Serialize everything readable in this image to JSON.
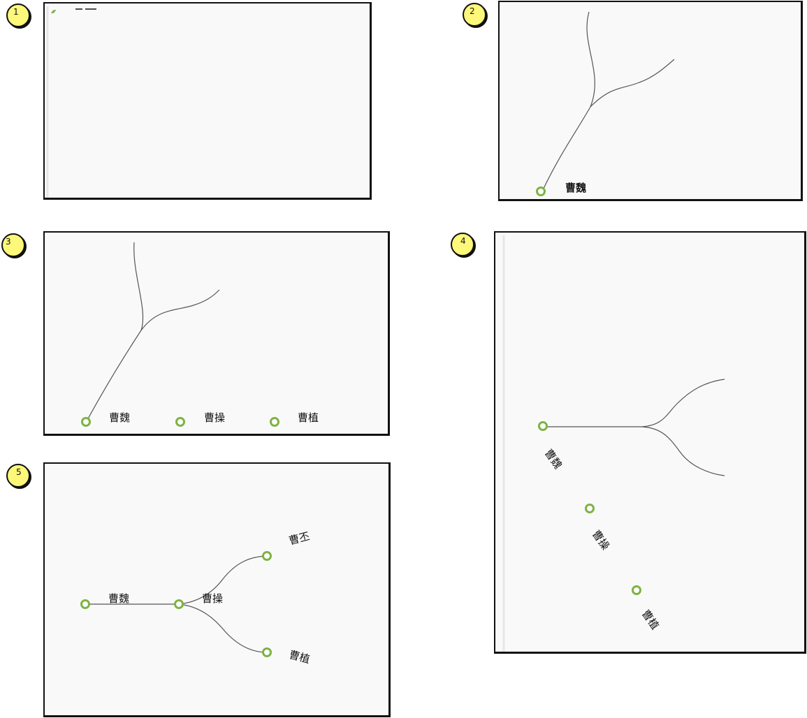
{
  "steps": [
    {
      "number": "1"
    },
    {
      "number": "2",
      "labels": {
        "wei": "曹魏"
      }
    },
    {
      "number": "3",
      "labels": {
        "wei": "曹魏",
        "cao": "曹操",
        "zhi": "曹植"
      }
    },
    {
      "number": "4",
      "labels": {
        "wei": "曹魏",
        "cao": "曹操",
        "zhi": "曹植"
      }
    },
    {
      "number": "5",
      "labels": {
        "wei": "曹魏",
        "cao": "曹操",
        "pi": "曹丕",
        "zhi": "曹植"
      }
    }
  ],
  "colors": {
    "node": "#7cb342",
    "badge": "#fdf77a",
    "edge": "#555555",
    "panel": "#f9f9f9"
  }
}
